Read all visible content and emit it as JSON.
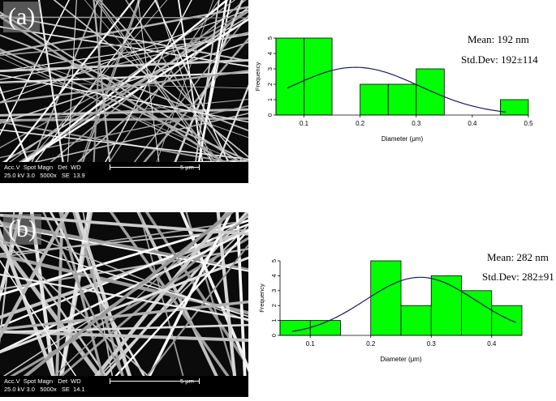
{
  "panels": [
    {
      "letter": "(a)",
      "sem": {
        "row1": "Acc.V  Spot Magn   Det  WD",
        "row2": "25.0 kV 3.0   5000x   SE  13.9",
        "scale": "5 μm"
      },
      "mean_text": "Mean: 192 nm",
      "std_text": "Std.Dev: 192±114"
    },
    {
      "letter": "(b)",
      "sem": {
        "row1": "Acc.V  Spot Magn   Det  WD",
        "row2": "25.0 kV 3.0   5000x   SE  14.1",
        "scale": "5 μm"
      },
      "mean_text": "Mean: 282 nm",
      "std_text": "Std.Dev: 282±91"
    }
  ],
  "colors": {
    "bar_fill": "#00ff00",
    "bar_stroke": "#000000",
    "curve": "#1a1a5e",
    "sem_background": "#0b0b0b",
    "fiber": "#e6e6e6"
  },
  "chart_data": [
    {
      "type": "bar",
      "xlabel": "Diameter (μm)",
      "ylabel": "Frequency",
      "xlim": [
        0.05,
        0.5
      ],
      "ylim": [
        0,
        5
      ],
      "xticks": [
        "0.1",
        "0.2",
        "0.3",
        "0.4",
        "0.5"
      ],
      "yticks": [
        "0",
        "1",
        "2",
        "3",
        "4",
        "5"
      ],
      "bins": [
        {
          "x0": 0.05,
          "x1": 0.1,
          "count": 5
        },
        {
          "x0": 0.1,
          "x1": 0.15,
          "count": 5
        },
        {
          "x0": 0.15,
          "x1": 0.2,
          "count": 0
        },
        {
          "x0": 0.2,
          "x1": 0.25,
          "count": 2
        },
        {
          "x0": 0.25,
          "x1": 0.3,
          "count": 2
        },
        {
          "x0": 0.3,
          "x1": 0.35,
          "count": 3
        },
        {
          "x0": 0.35,
          "x1": 0.4,
          "count": 0
        },
        {
          "x0": 0.4,
          "x1": 0.45,
          "count": 0
        },
        {
          "x0": 0.45,
          "x1": 0.5,
          "count": 1
        }
      ],
      "fit_curve": {
        "type": "normal",
        "mean": 0.192,
        "sd": 0.114,
        "x_from": 0.07,
        "x_to": 0.46,
        "peak": 3.1
      },
      "grid": false
    },
    {
      "type": "bar",
      "xlabel": "Diameter (μm)",
      "ylabel": "Frequency",
      "xlim": [
        0.05,
        0.45
      ],
      "ylim": [
        0,
        5
      ],
      "xticks": [
        "0.1",
        "0.2",
        "0.3",
        "0.4"
      ],
      "yticks": [
        "0",
        "1",
        "2",
        "3",
        "4",
        "5"
      ],
      "bins": [
        {
          "x0": 0.05,
          "x1": 0.1,
          "count": 1
        },
        {
          "x0": 0.1,
          "x1": 0.15,
          "count": 1
        },
        {
          "x0": 0.15,
          "x1": 0.2,
          "count": 0
        },
        {
          "x0": 0.2,
          "x1": 0.25,
          "count": 5
        },
        {
          "x0": 0.25,
          "x1": 0.3,
          "count": 2
        },
        {
          "x0": 0.3,
          "x1": 0.35,
          "count": 4
        },
        {
          "x0": 0.35,
          "x1": 0.4,
          "count": 3
        },
        {
          "x0": 0.4,
          "x1": 0.45,
          "count": 2
        }
      ],
      "fit_curve": {
        "type": "normal",
        "mean": 0.282,
        "sd": 0.091,
        "x_from": 0.07,
        "x_to": 0.44,
        "peak": 3.9
      },
      "grid": false
    }
  ]
}
